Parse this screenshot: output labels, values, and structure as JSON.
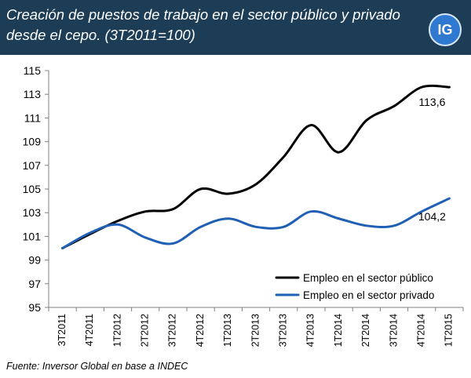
{
  "header": {
    "title": "Creación de puestos de trabajo en el sector público y privado desde el cepo. (3T2011=100)",
    "logo_text": "IG",
    "background": "#1d3c56",
    "logo_color": "#2f7ad0"
  },
  "source": "Fuente: Inversor Global en base a INDEC",
  "chart_data": {
    "type": "line",
    "categories": [
      "3T2011",
      "4T2011",
      "1T2012",
      "2T2012",
      "3T2012",
      "4T2012",
      "1T2013",
      "2T2013",
      "3T2013",
      "4T2013",
      "1T2014",
      "2T2014",
      "3T2014",
      "4T2014",
      "1T2015"
    ],
    "series": [
      {
        "name": "Empleo en el sector público",
        "color": "#000000",
        "values": [
          100,
          101.2,
          102.3,
          103.1,
          103.3,
          105.0,
          104.6,
          105.4,
          107.7,
          110.4,
          108.1,
          110.8,
          112.0,
          113.6,
          113.6
        ],
        "end_label": "113,6"
      },
      {
        "name": "Empleo en el sector privado",
        "color": "#1f5fb4",
        "values": [
          100,
          101.3,
          102.0,
          100.9,
          100.4,
          101.8,
          102.5,
          101.8,
          101.8,
          103.1,
          102.5,
          101.9,
          101.9,
          103.1,
          104.2
        ],
        "end_label": "104,2"
      }
    ],
    "yticks": [
      "115",
      "113",
      "111",
      "109",
      "107",
      "105",
      "103",
      "101",
      "99",
      "97",
      "95"
    ],
    "ylim": [
      95,
      115
    ],
    "grid": false,
    "legend": "bottom-right"
  }
}
